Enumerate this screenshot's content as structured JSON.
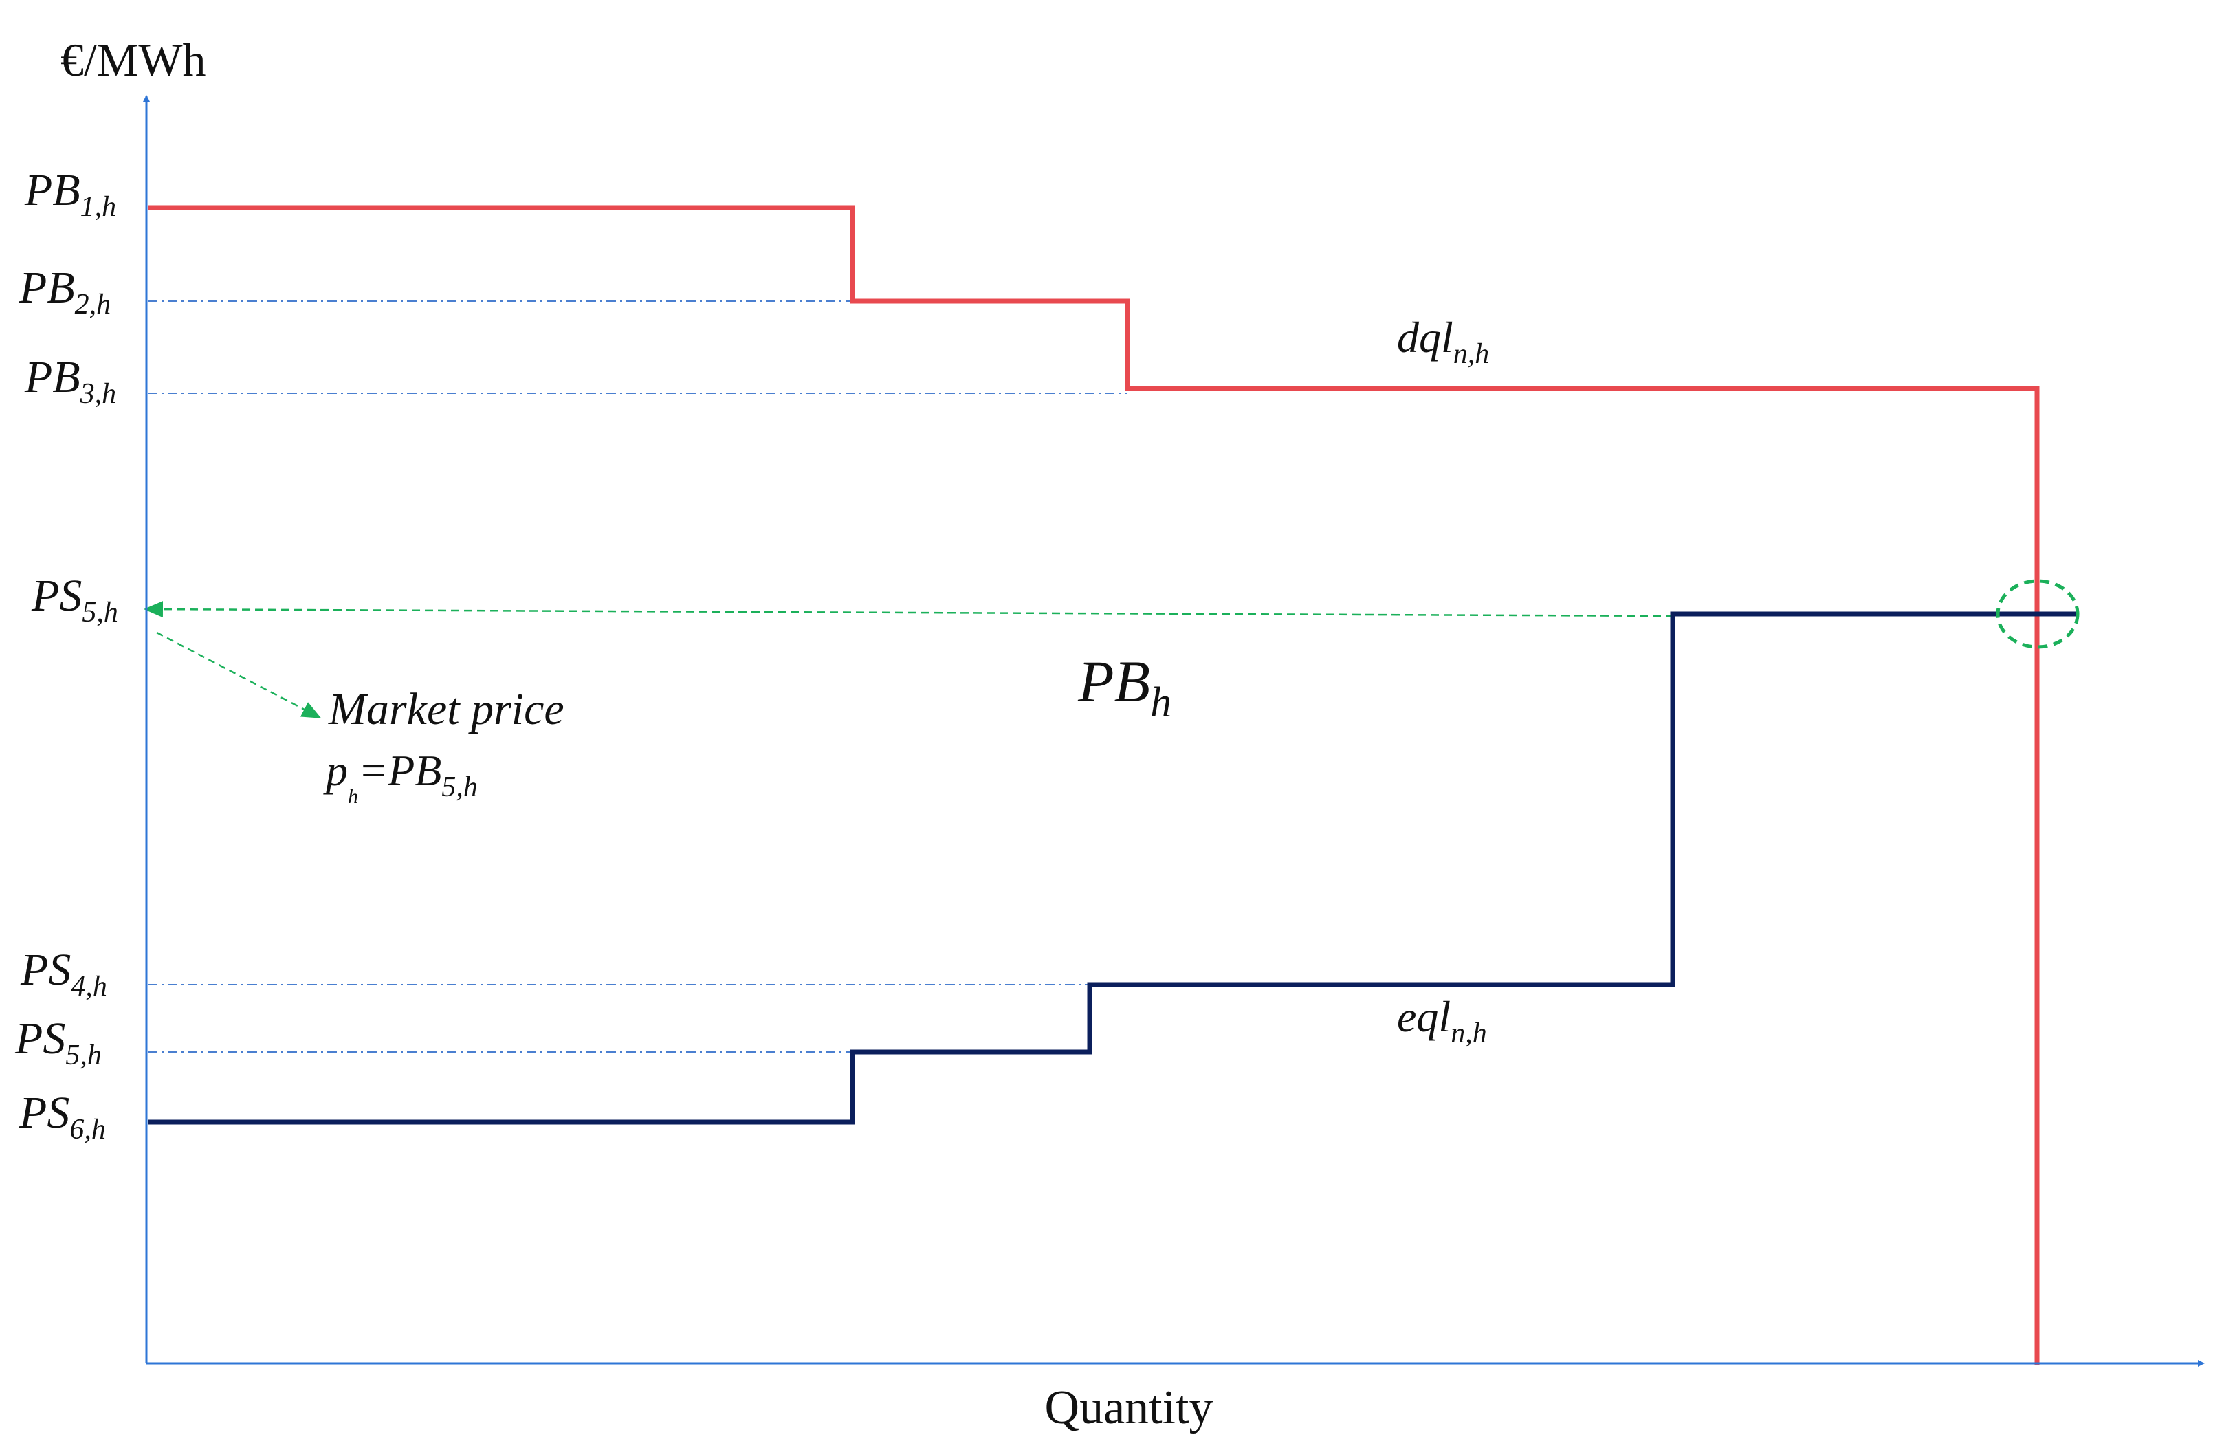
{
  "axes": {
    "y_label": "€/MWh",
    "x_label": "Quantity"
  },
  "price_levels": {
    "pb1": {
      "base": "PB",
      "sub": "1,h"
    },
    "pb2": {
      "base": "PB",
      "sub": "2,h"
    },
    "pb3": {
      "base": "PB",
      "sub": "3,h"
    },
    "ps5_top": {
      "base": "PS",
      "sub": "5,h"
    },
    "ps4": {
      "base": "PS",
      "sub": "4,h"
    },
    "ps5": {
      "base": "PS",
      "sub": "5,h"
    },
    "ps6": {
      "base": "PS",
      "sub": "6,h"
    }
  },
  "curve_labels": {
    "demand": {
      "base": "dql",
      "sub": "n,h"
    },
    "supply": {
      "base": "eql",
      "sub": "n,h"
    },
    "center": {
      "base": "PB",
      "sub": "h"
    }
  },
  "market_price": {
    "title": "Market price",
    "formula_p": "p",
    "formula_p_sub": "h",
    "formula_eq": "=PB",
    "formula_sub": "5,h"
  },
  "colors": {
    "axis": "#2E75D6",
    "demand": "#E8494F",
    "supply": "#0B1F5C",
    "guide": "#4A7FD0",
    "market": "#1BB05A"
  }
}
